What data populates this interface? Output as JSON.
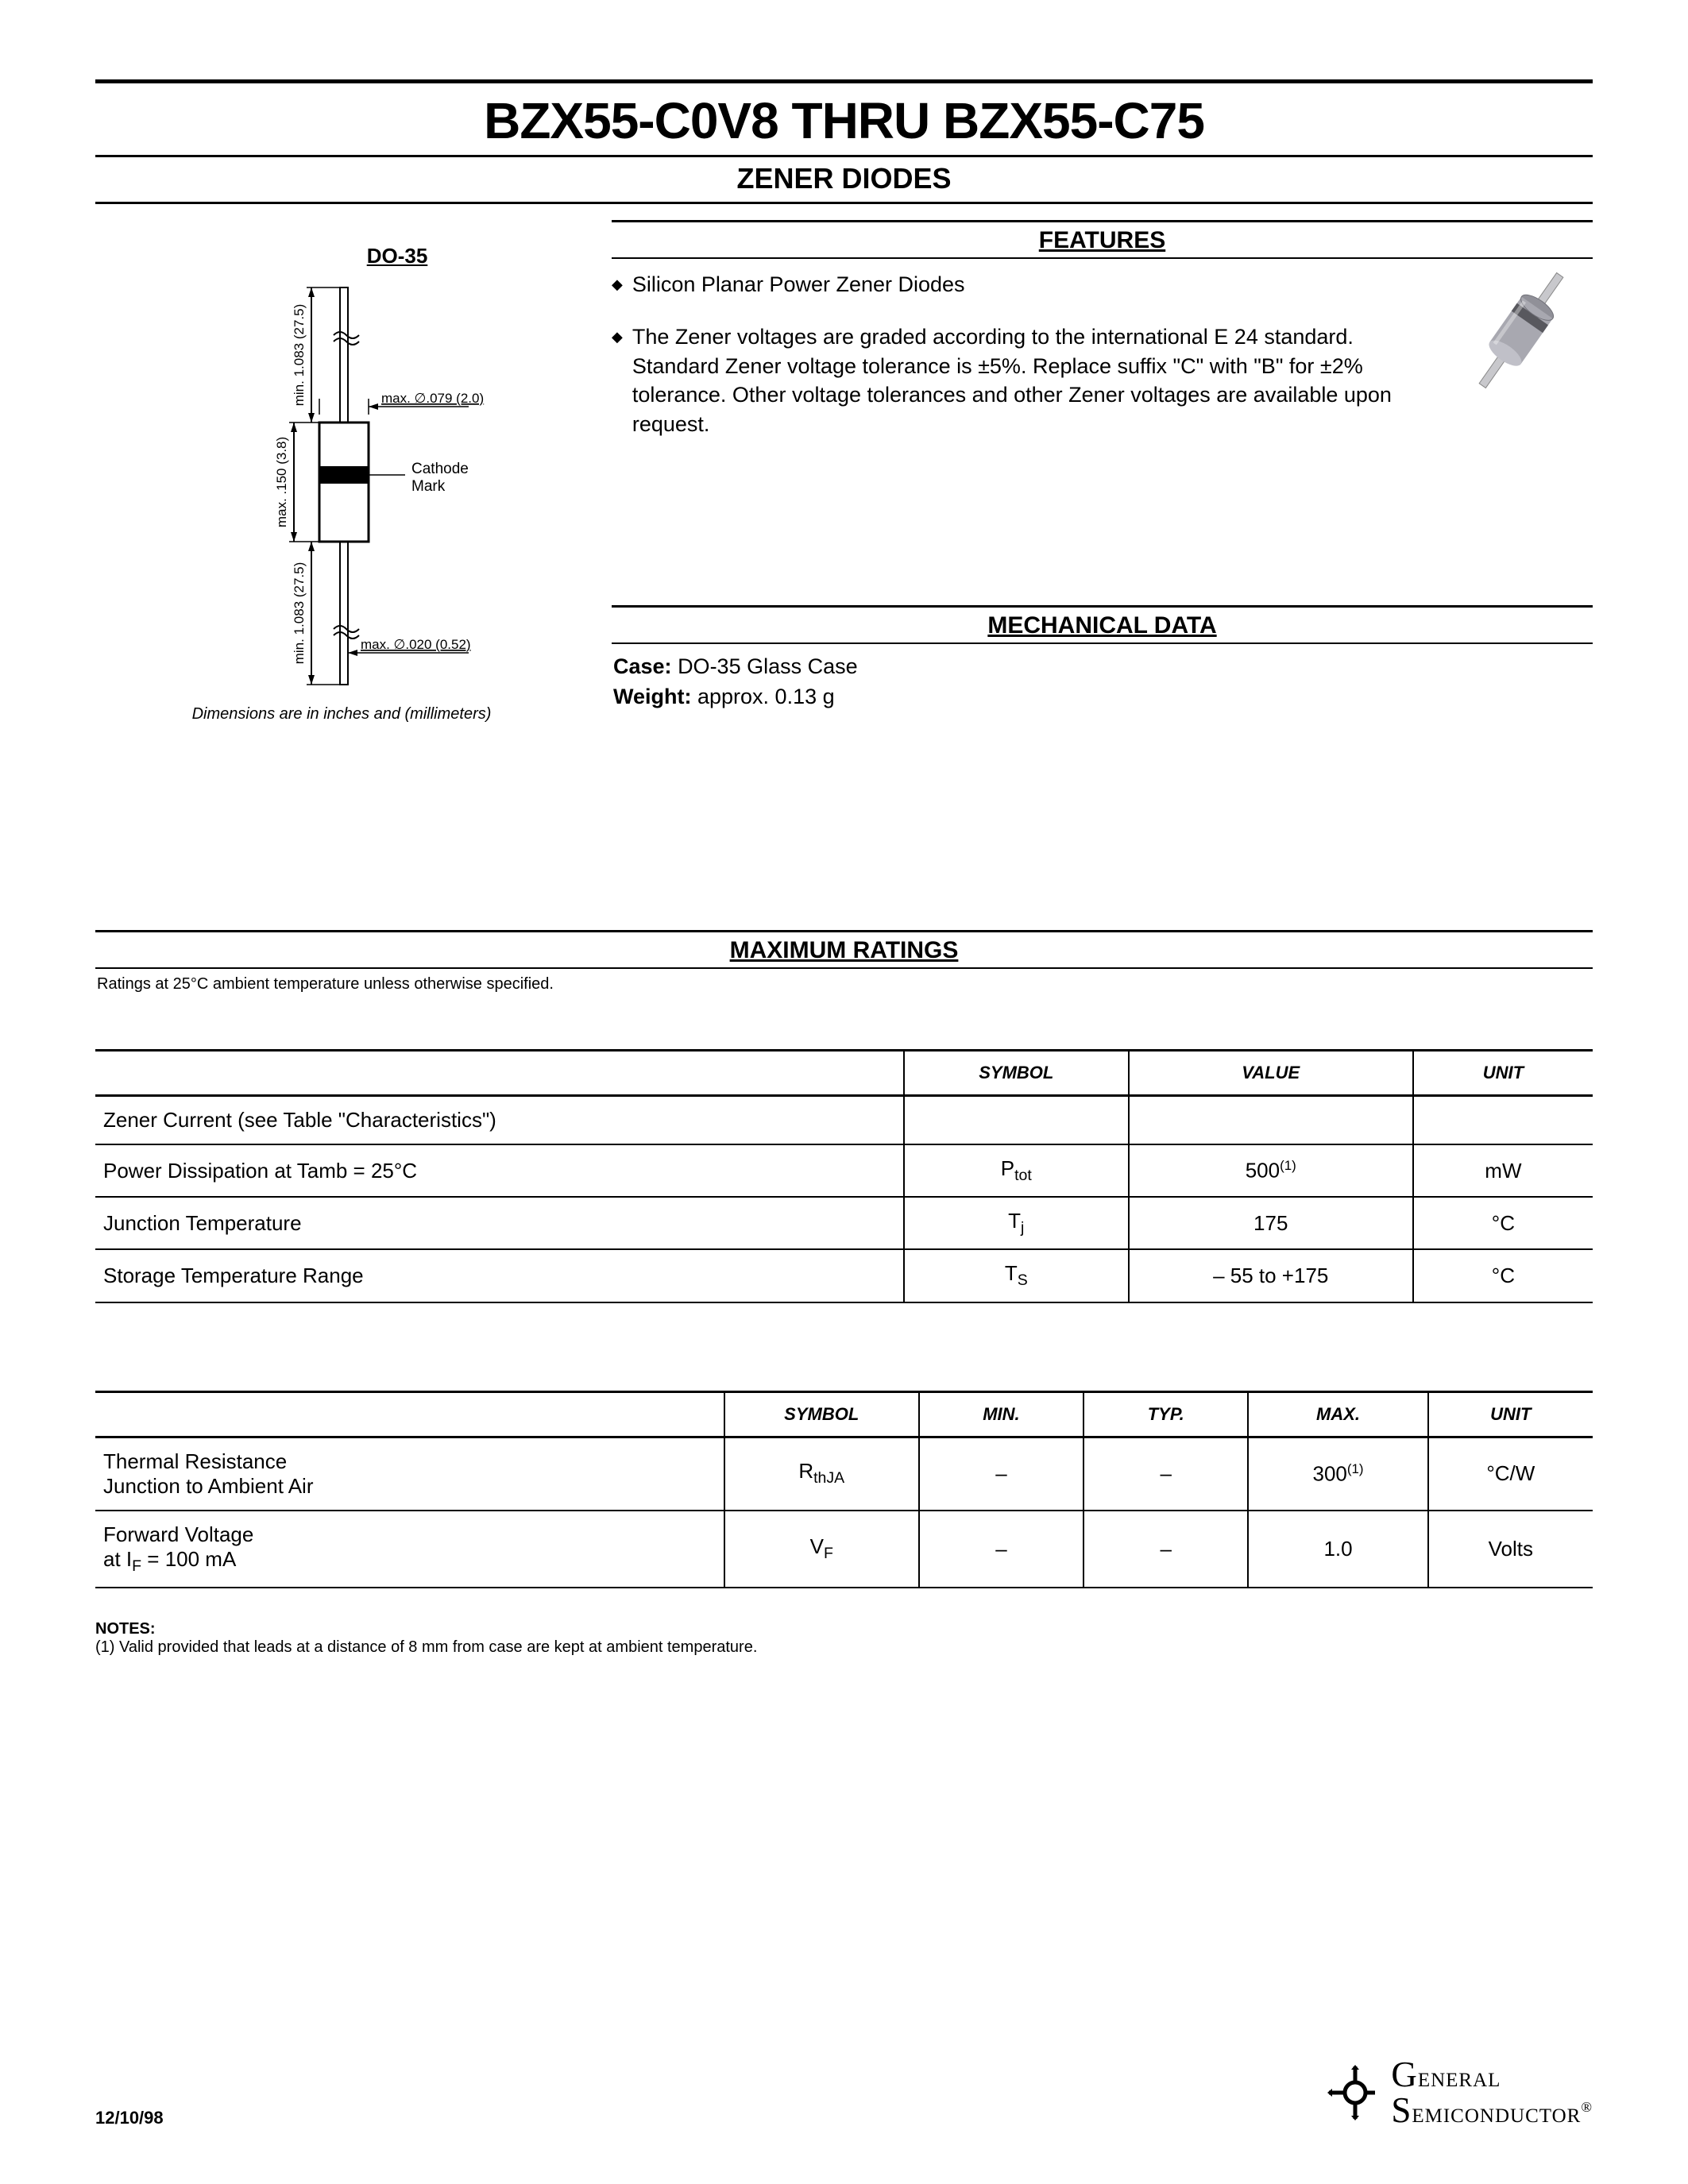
{
  "title": "BZX55-C0V8 THRU BZX55-C75",
  "subtitle": "ZENER DIODES",
  "do35": {
    "label": "DO-35",
    "dim_body_len": "max. .150 (3.8)",
    "dim_lead_len_top": "min. 1.083 (27.5)",
    "dim_lead_len_bot": "min. 1.083 (27.5)",
    "dim_body_dia": "max. ∅.079 (2.0)",
    "dim_lead_dia": "max. ∅.020 (0.52)",
    "cathode_label": "Cathode\nMark",
    "note": "Dimensions are in inches and (millimeters)"
  },
  "features": {
    "heading": "FEATURES",
    "items": [
      "Silicon Planar Power Zener Diodes",
      "The Zener voltages are graded according to the international E 24 standard. Standard Zener voltage tolerance is ±5%. Replace suffix \"C\" with \"B\" for ±2% tolerance. Other voltage tolerances and other Zener voltages are available upon request."
    ]
  },
  "mech": {
    "heading": "MECHANICAL DATA",
    "case_label": "Case:",
    "case_value": "DO-35 Glass Case",
    "weight_label": "Weight:",
    "weight_value": "approx. 0.13 g"
  },
  "maxratings": {
    "heading": "MAXIMUM RATINGS",
    "note": "Ratings at 25°C ambient temperature unless otherwise specified.",
    "table1": {
      "columns": [
        "",
        "SYMBOL",
        "VALUE",
        "UNIT"
      ],
      "col_widths": [
        "54%",
        "15%",
        "19%",
        "12%"
      ],
      "rows": [
        {
          "param": "Zener Current (see Table \"Characteristics\")",
          "symbol": "",
          "value": "",
          "unit": ""
        },
        {
          "param": "Power Dissipation at Tamb = 25°C",
          "symbol_html": "P<span class='sub'>tot</span>",
          "value_html": "500<span class='sup'>(1)</span>",
          "unit": "mW"
        },
        {
          "param": "Junction Temperature",
          "symbol_html": "T<span class='sub'>j</span>",
          "value": "175",
          "unit": "°C"
        },
        {
          "param": "Storage Temperature Range",
          "symbol_html": "T<span class='sub'>S</span>",
          "value": "– 55 to +175",
          "unit": "°C"
        }
      ]
    },
    "table2": {
      "columns": [
        "",
        "SYMBOL",
        "MIN.",
        "TYP.",
        "MAX.",
        "UNIT"
      ],
      "col_widths": [
        "42%",
        "13%",
        "11%",
        "11%",
        "12%",
        "11%"
      ],
      "rows": [
        {
          "param_html": "Thermal Resistance<br>Junction to Ambient Air",
          "symbol_html": "R<span class='sub'>thJA</span>",
          "min": "–",
          "typ": "–",
          "max_html": "300<span class='sup'>(1)</span>",
          "unit": "°C/W"
        },
        {
          "param_html": "Forward Voltage<br>at I<span class='sub'>F</span> = 100 mA",
          "symbol_html": "V<span class='sub'>F</span>",
          "min": "–",
          "typ": "–",
          "max": "1.0",
          "unit": "Volts"
        }
      ]
    }
  },
  "notes": {
    "title": "NOTES:",
    "n1": "(1) Valid provided that leads at a distance of 8 mm from case are kept at ambient temperature."
  },
  "footer": {
    "date": "12/10/98",
    "company_l1": "General",
    "company_l2": "Semiconductor"
  },
  "colors": {
    "text": "#000000",
    "bg": "#ffffff",
    "diode_body": "#a8a8b0",
    "diode_dark": "#707078"
  }
}
